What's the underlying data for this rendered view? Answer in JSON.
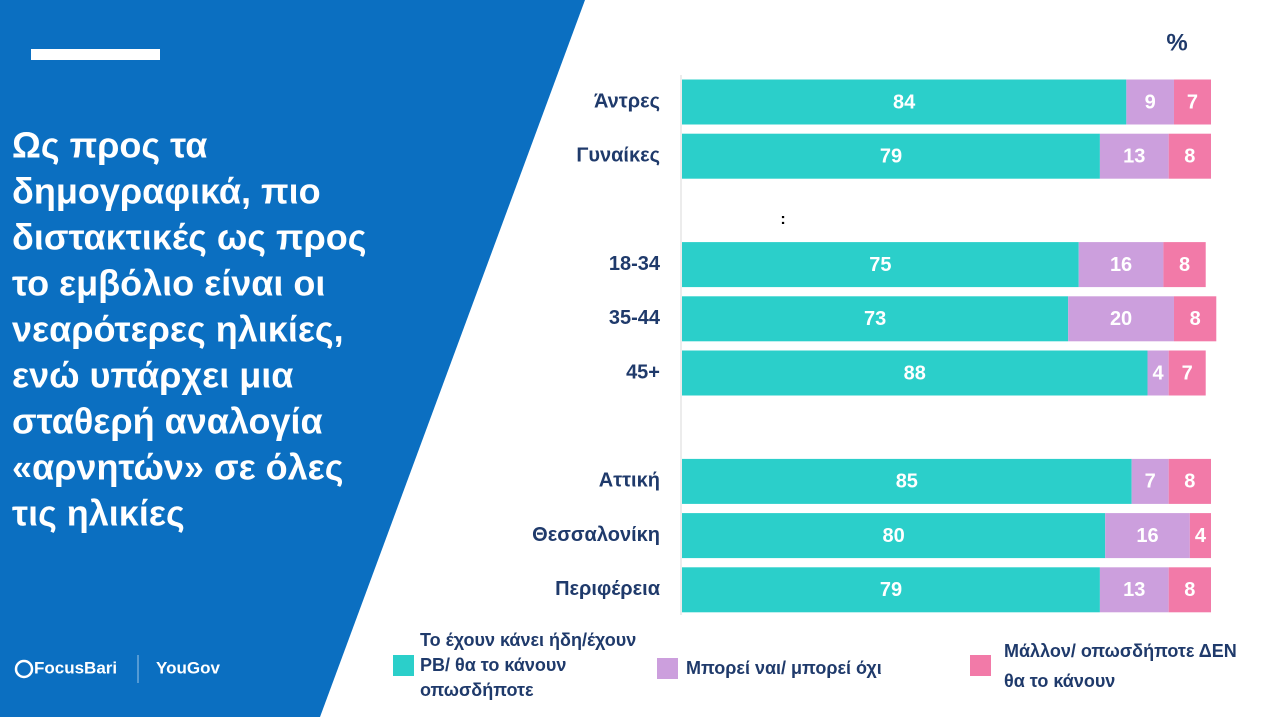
{
  "slide": {
    "headline": [
      "Ως προς τα",
      "δημογραφικά, πιο",
      "διστακτικές ως προς",
      "το εμβόλιο είναι οι",
      "νεαρότερες ηλικίες,",
      "ενώ υπάρχει μια",
      "σταθερή αναλογία",
      "«αρνητών» σε όλες",
      "τις ηλικίες"
    ],
    "logos": [
      "FocusBari",
      "YouGov"
    ]
  },
  "chart_data": {
    "type": "bar",
    "orientation": "horizontal",
    "stacked": true,
    "unit_label": "%",
    "annotation": ":",
    "categories": [
      "Άντρες",
      "Γυναίκες",
      null,
      "18-34",
      "35-44",
      "45+",
      null,
      "Αττική",
      "Θεσσαλονίκη",
      "Περιφέρεια"
    ],
    "xlim": [
      0,
      100
    ],
    "series": [
      {
        "name": "Το έχουν κάνει ήδη/έχουν PB/ θα το κάνουν οπωσδήποτε",
        "color": "#2bcfca",
        "values": [
          84,
          79,
          null,
          75,
          73,
          88,
          null,
          85,
          80,
          79
        ]
      },
      {
        "name": "Μπορεί ναι/ μπορεί όχι",
        "color": "#cc9fdd",
        "values": [
          9,
          13,
          null,
          16,
          20,
          4,
          null,
          7,
          16,
          13
        ]
      },
      {
        "name": "Μάλλον/ οπωσδήποτε ΔΕΝ θα το κάνουν",
        "color": "#f27aa8",
        "values": [
          7,
          8,
          null,
          8,
          8,
          7,
          null,
          8,
          4,
          8
        ]
      }
    ]
  }
}
